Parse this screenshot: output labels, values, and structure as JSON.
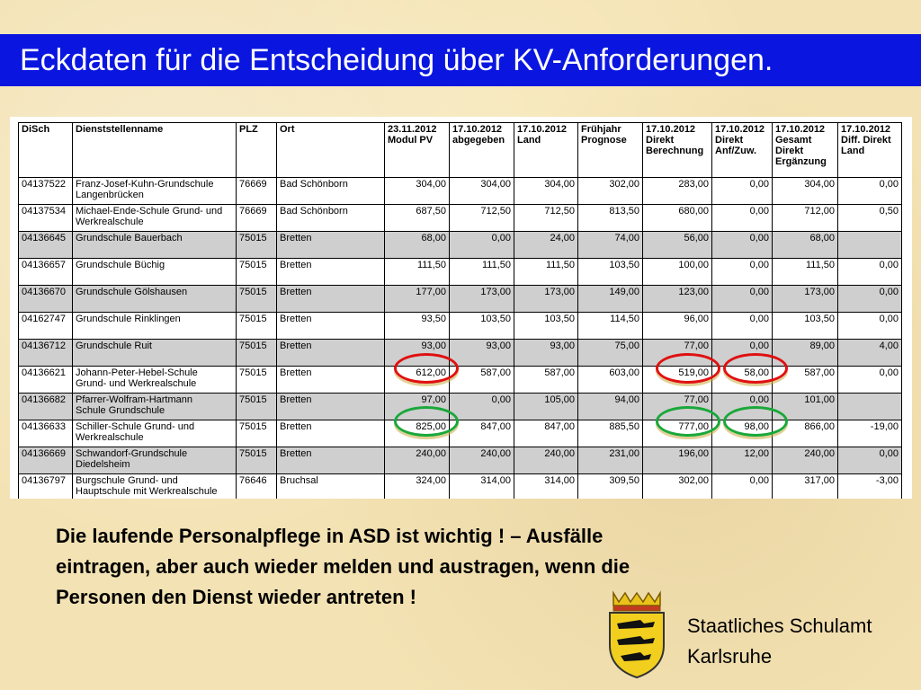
{
  "slide": {
    "title": "Eckdaten für die Entscheidung über KV-Anforderungen."
  },
  "table": {
    "headers": [
      [
        "DiSch"
      ],
      [
        "Dienststellenname"
      ],
      [
        "PLZ"
      ],
      [
        "Ort"
      ],
      [
        "23.11.2012",
        "Modul PV"
      ],
      [
        "17.10.2012",
        "abgegeben"
      ],
      [
        "17.10.2012",
        "Land"
      ],
      [
        "Frühjahr",
        "Prognose"
      ],
      [
        "17.10.2012",
        "Direkt",
        "Berechnung"
      ],
      [
        "17.10.2012",
        "Direkt",
        "Anf/Zuw."
      ],
      [
        "17.10.2012",
        "Gesamt",
        "Direkt",
        "Ergänzung"
      ],
      [
        "17.10.2012",
        "Diff. Direkt",
        "Land"
      ]
    ],
    "rows": [
      {
        "shade": "white",
        "cells": [
          "04137522",
          [
            "Franz-Josef-Kuhn-Grundschule",
            "Langenbrücken"
          ],
          "76669",
          "Bad Schönborn",
          "304,00",
          "304,00",
          "304,00",
          "302,00",
          "283,00",
          "0,00",
          "304,00",
          "0,00"
        ]
      },
      {
        "shade": "white",
        "cells": [
          "04137534",
          [
            "Michael-Ende-Schule Grund- und",
            "Werkrealschule"
          ],
          "76669",
          "Bad Schönborn",
          "687,50",
          "712,50",
          "712,50",
          "813,50",
          "680,00",
          "0,00",
          "712,00",
          "0,50"
        ]
      },
      {
        "shade": "gray",
        "cells": [
          "04136645",
          [
            "Grundschule Bauerbach"
          ],
          "75015",
          "Bretten",
          "68,00",
          "0,00",
          "24,00",
          "74,00",
          "56,00",
          "0,00",
          "68,00",
          ""
        ]
      },
      {
        "shade": "white",
        "cells": [
          "04136657",
          [
            "Grundschule Büchig"
          ],
          "75015",
          "Bretten",
          "111,50",
          "111,50",
          "111,50",
          "103,50",
          "100,00",
          "0,00",
          "111,50",
          "0,00"
        ]
      },
      {
        "shade": "gray",
        "cells": [
          "04136670",
          [
            "Grundschule Gölshausen"
          ],
          "75015",
          "Bretten",
          "177,00",
          "173,00",
          "173,00",
          "149,00",
          "123,00",
          "0,00",
          "173,00",
          "0,00"
        ]
      },
      {
        "shade": "white",
        "cells": [
          "04162747",
          [
            "Grundschule Rinklingen"
          ],
          "75015",
          "Bretten",
          "93,50",
          "103,50",
          "103,50",
          "114,50",
          "96,00",
          "0,00",
          "103,50",
          "0,00"
        ]
      },
      {
        "shade": "gray",
        "cells": [
          "04136712",
          [
            "Grundschule Ruit"
          ],
          "75015",
          "Bretten",
          "93,00",
          "93,00",
          "93,00",
          "75,00",
          "77,00",
          "0,00",
          "89,00",
          "4,00"
        ]
      },
      {
        "shade": "white",
        "cells": [
          "04136621",
          [
            "Johann-Peter-Hebel-Schule",
            "Grund- und Werkrealschule"
          ],
          "75015",
          "Bretten",
          "612,00",
          "587,00",
          "587,00",
          "603,00",
          "519,00",
          "58,00",
          "587,00",
          "0,00"
        ]
      },
      {
        "shade": "gray",
        "cells": [
          "04136682",
          [
            "Pfarrer-Wolfram-Hartmann",
            "Schule Grundschule"
          ],
          "75015",
          "Bretten",
          "97,00",
          "0,00",
          "105,00",
          "94,00",
          "77,00",
          "0,00",
          "101,00",
          ""
        ]
      },
      {
        "shade": "white",
        "cells": [
          "04136633",
          [
            "Schiller-Schule Grund- und",
            "Werkrealschule"
          ],
          "75015",
          "Bretten",
          "825,00",
          "847,00",
          "847,00",
          "885,50",
          "777,00",
          "98,00",
          "866,00",
          "-19,00"
        ]
      },
      {
        "shade": "gray",
        "cells": [
          "04136669",
          [
            "Schwandorf-Grundschule",
            "Diedelsheim"
          ],
          "75015",
          "Bretten",
          "240,00",
          "240,00",
          "240,00",
          "231,00",
          "196,00",
          "12,00",
          "240,00",
          "0,00"
        ]
      },
      {
        "shade": "white",
        "cells": [
          "04136797",
          [
            "Burgschule Grund- und",
            "Hauptschule mit Werkrealschule"
          ],
          "76646",
          "Bruchsal",
          "324,00",
          "314,00",
          "314,00",
          "309,50",
          "302,00",
          "0,00",
          "317,00",
          "-3,00"
        ]
      }
    ],
    "highlight_colors": {
      "red": "#e01010",
      "green": "#1aa83a"
    }
  },
  "message": {
    "lines": [
      "Die laufende Personalpflege in ASD ist wichtig ! – Ausfälle",
      "eintragen, aber auch wieder melden und austragen, wenn die",
      "Personen den Dienst wieder antreten !"
    ]
  },
  "footer": {
    "org_lines": [
      "Staatliches Schulamt",
      "Karlsruhe"
    ],
    "crest_icon": "coat-of-arms-icon"
  }
}
